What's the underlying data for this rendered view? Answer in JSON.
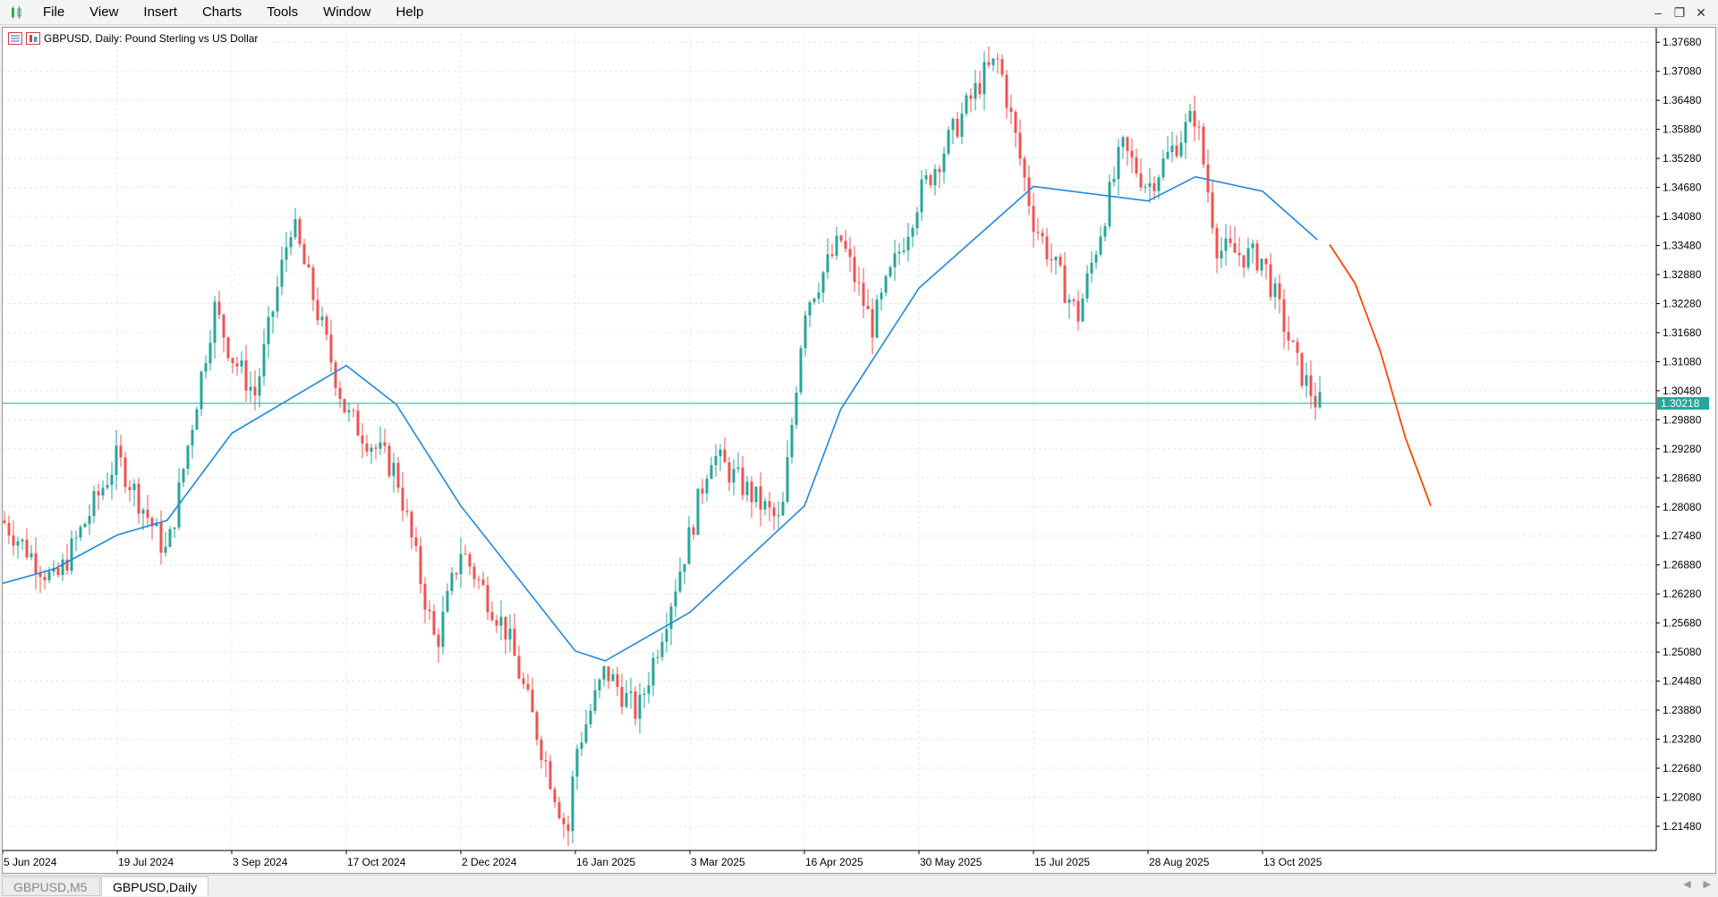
{
  "menu": {
    "items": [
      "File",
      "View",
      "Insert",
      "Charts",
      "Tools",
      "Window",
      "Help"
    ]
  },
  "window_controls": {
    "minimize": "–",
    "restore": "❐",
    "close": "✕"
  },
  "chart": {
    "label": "GBPUSD, Daily:  Pound Sterling vs US Dollar",
    "current_price": "1.30218",
    "colors": {
      "bull": "#26a69a",
      "bear": "#ef5350",
      "ma": "#1e88e5",
      "projection": "#ff4500",
      "price_line": "#26a69a",
      "grid": "#e8e8e8"
    }
  },
  "tabs": [
    {
      "label": "GBPUSD,M5",
      "active": false
    },
    {
      "label": "GBPUSD,Daily",
      "active": true
    }
  ],
  "chart_data": {
    "type": "candlestick",
    "title": "GBPUSD, Daily:  Pound Sterling vs US Dollar",
    "y_ticks": [
      "1.37680",
      "1.37080",
      "1.36480",
      "1.35880",
      "1.35280",
      "1.34680",
      "1.34080",
      "1.33480",
      "1.32880",
      "1.32280",
      "1.31680",
      "1.31080",
      "1.30480",
      "1.29880",
      "1.29280",
      "1.28680",
      "1.28080",
      "1.27480",
      "1.26880",
      "1.26280",
      "1.25680",
      "1.25080",
      "1.24480",
      "1.23880",
      "1.23280",
      "1.22680",
      "1.22080",
      "1.21480"
    ],
    "x_ticks": [
      "5 Jun 2024",
      "19 Jul 2024",
      "3 Sep 2024",
      "17 Oct 2024",
      "2 Dec 2024",
      "16 Jan 2025",
      "3 Mar 2025",
      "16 Apr 2025",
      "30 May 2025",
      "15 Jul 2025",
      "28 Aug 2025",
      "13 Oct 2025"
    ],
    "ylim": [
      1.2098,
      1.3798
    ],
    "current_price": 1.30218,
    "close_path": [
      {
        "date": "5 Jun 2024",
        "close": 1.278
      },
      {
        "date": "25 Jun 2024",
        "close": 1.265
      },
      {
        "date": "19 Jul 2024",
        "close": 1.291
      },
      {
        "date": "8 Aug 2024",
        "close": 1.271
      },
      {
        "date": "27 Aug 2024",
        "close": 1.322
      },
      {
        "date": "3 Sep 2024",
        "close": 1.312
      },
      {
        "date": "12 Sep 2024",
        "close": 1.304
      },
      {
        "date": "26 Sep 2024",
        "close": 1.34
      },
      {
        "date": "17 Oct 2024",
        "close": 1.3
      },
      {
        "date": "6 Nov 2024",
        "close": 1.288
      },
      {
        "date": "22 Nov 2024",
        "close": 1.252
      },
      {
        "date": "2 Dec 2024",
        "close": 1.272
      },
      {
        "date": "20 Dec 2024",
        "close": 1.255
      },
      {
        "date": "13 Jan 2025",
        "close": 1.213
      },
      {
        "date": "16 Jan 2025",
        "close": 1.23
      },
      {
        "date": "28 Jan 2025",
        "close": 1.247
      },
      {
        "date": "10 Feb 2025",
        "close": 1.238
      },
      {
        "date": "3 Mar 2025",
        "close": 1.275
      },
      {
        "date": "11 Mar 2025",
        "close": 1.292
      },
      {
        "date": "7 Apr 2025",
        "close": 1.277
      },
      {
        "date": "16 Apr 2025",
        "close": 1.322
      },
      {
        "date": "30 Apr 2025",
        "close": 1.336
      },
      {
        "date": "12 May 2025",
        "close": 1.318
      },
      {
        "date": "30 May 2025",
        "close": 1.345
      },
      {
        "date": "25 Jun 2025",
        "close": 1.37
      },
      {
        "date": "1 Jul 2025",
        "close": 1.373
      },
      {
        "date": "15 Jul 2025",
        "close": 1.34
      },
      {
        "date": "1 Aug 2025",
        "close": 1.32
      },
      {
        "date": "18 Aug 2025",
        "close": 1.355
      },
      {
        "date": "28 Aug 2025",
        "close": 1.347
      },
      {
        "date": "16 Sep 2025",
        "close": 1.362
      },
      {
        "date": "25 Sep 2025",
        "close": 1.334
      },
      {
        "date": "13 Oct 2025",
        "close": 1.332
      },
      {
        "date": "27 Oct 2025",
        "close": 1.31
      },
      {
        "date": "4 Nov 2025",
        "close": 1.302
      }
    ],
    "moving_average": [
      {
        "date": "5 Jun 2024",
        "value": 1.265
      },
      {
        "date": "25 Jun 2024",
        "value": 1.268
      },
      {
        "date": "19 Jul 2024",
        "value": 1.275
      },
      {
        "date": "8 Aug 2024",
        "value": 1.278
      },
      {
        "date": "3 Sep 2024",
        "value": 1.296
      },
      {
        "date": "17 Oct 2024",
        "value": 1.31
      },
      {
        "date": "6 Nov 2024",
        "value": 1.302
      },
      {
        "date": "2 Dec 2024",
        "value": 1.281
      },
      {
        "date": "16 Jan 2025",
        "value": 1.251
      },
      {
        "date": "28 Jan 2025",
        "value": 1.249
      },
      {
        "date": "3 Mar 2025",
        "value": 1.259
      },
      {
        "date": "16 Apr 2025",
        "value": 1.281
      },
      {
        "date": "30 Apr 2025",
        "value": 1.301
      },
      {
        "date": "30 May 2025",
        "value": 1.326
      },
      {
        "date": "15 Jul 2025",
        "value": 1.347
      },
      {
        "date": "28 Aug 2025",
        "value": 1.344
      },
      {
        "date": "16 Sep 2025",
        "value": 1.349
      },
      {
        "date": "13 Oct 2025",
        "value": 1.346
      },
      {
        "date": "4 Nov 2025",
        "value": 1.336
      }
    ],
    "projection": [
      {
        "x": 0.0,
        "value": 1.335
      },
      {
        "x": 0.25,
        "value": 1.327
      },
      {
        "x": 0.5,
        "value": 1.313
      },
      {
        "x": 0.75,
        "value": 1.295
      },
      {
        "x": 1.0,
        "value": 1.281
      }
    ]
  }
}
